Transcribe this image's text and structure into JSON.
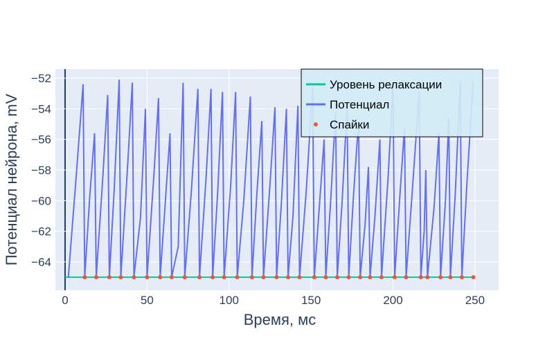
{
  "chart_data": {
    "type": "line",
    "x_label": "Время, мс",
    "y_label": "Потенциал нейрона, mV",
    "xlim": [
      -5.9,
      264.4
    ],
    "ylim": [
      -65.85,
      -51.41
    ],
    "xticks": [
      0,
      50,
      100,
      150,
      200,
      250
    ],
    "yticks": [
      {
        "value": -64,
        "label": "−64"
      },
      {
        "value": -62,
        "label": "−62"
      },
      {
        "value": -60,
        "label": "−60"
      },
      {
        "value": -58,
        "label": "−58"
      },
      {
        "value": -56,
        "label": "−56"
      },
      {
        "value": -54,
        "label": "−54"
      },
      {
        "value": -52,
        "label": "−52"
      }
    ],
    "grid": true,
    "legend": "top-right",
    "series": [
      {
        "name": "Уровень релаксации",
        "color": "#00cc96",
        "mode": "line",
        "x": [
          0,
          249
        ],
        "values": [
          -65,
          -65
        ]
      },
      {
        "name": "Потенциал",
        "color": "#636efa",
        "mode": "line",
        "x": [
          2,
          7,
          11,
          12,
          15,
          18,
          19,
          23,
          26,
          27,
          30,
          33,
          34,
          38,
          41,
          42,
          46,
          49,
          50,
          54,
          57,
          58,
          61,
          64,
          65,
          69,
          72,
          73,
          77,
          81,
          82,
          86,
          89,
          90,
          93,
          96,
          97,
          101,
          104,
          105,
          109,
          113,
          114,
          117,
          120,
          121,
          125,
          128,
          129,
          132,
          135,
          136,
          139,
          142,
          143,
          147,
          151,
          152,
          155,
          158,
          159,
          162,
          165,
          166,
          169,
          172,
          173,
          176,
          179,
          180,
          183,
          185,
          186,
          189,
          192,
          193,
          197,
          200,
          201,
          204,
          207,
          208,
          212,
          216,
          217,
          219,
          220,
          221,
          225,
          228,
          229,
          232,
          234,
          235,
          238,
          241,
          242,
          245,
          248,
          249
        ],
        "values": [
          -65,
          -58.1,
          -52.4,
          -65,
          -59.8,
          -55.6,
          -65,
          -58.5,
          -53.1,
          -65,
          -59.2,
          -52.1,
          -65,
          -58,
          -52.3,
          -65,
          -61.1,
          -54,
          -65,
          -58.6,
          -53.3,
          -65,
          -60.3,
          -55.6,
          -65,
          -63,
          -52.3,
          -65,
          -59.4,
          -52.7,
          -65,
          -58.5,
          -52.7,
          -65,
          -59.6,
          -52.9,
          -65,
          -59,
          -52.9,
          -65,
          -60,
          -53.2,
          -65,
          -59.5,
          -54.8,
          -65,
          -58.9,
          -53.9,
          -65,
          -60,
          -54,
          -65,
          -61,
          -53.8,
          -65,
          -59.5,
          -52.6,
          -65,
          -60.5,
          -56,
          -65,
          -60,
          -54.2,
          -65,
          -60,
          -53.9,
          -65,
          -59.5,
          -54.8,
          -65,
          -61.5,
          -57.8,
          -65,
          -61,
          -56,
          -65,
          -58.5,
          -52.4,
          -65,
          -60,
          -55.2,
          -65,
          -59,
          -52.9,
          -65,
          -62,
          -58,
          -65,
          -60.5,
          -55.6,
          -65,
          -60,
          -54.6,
          -65,
          -59.5,
          -52.2,
          -65,
          -59,
          -53.8,
          -52.2
        ]
      },
      {
        "name": "Спайки",
        "color": "#ef553b",
        "mode": "markers",
        "x": [
          12,
          19,
          27,
          34,
          42,
          50,
          58,
          65,
          73,
          82,
          90,
          97,
          105,
          114,
          121,
          129,
          136,
          143,
          152,
          159,
          166,
          173,
          180,
          186,
          193,
          201,
          208,
          217,
          221,
          229,
          235,
          242,
          249
        ],
        "values": [
          -65,
          -65,
          -65,
          -65,
          -65,
          -65,
          -65,
          -65,
          -65,
          -65,
          -65,
          -65,
          -65,
          -65,
          -65,
          -65,
          -65,
          -65,
          -65,
          -65,
          -65,
          -65,
          -65,
          -65,
          -65,
          -65,
          -65,
          -65,
          -65,
          -65,
          -65,
          -65,
          -65
        ]
      }
    ]
  }
}
